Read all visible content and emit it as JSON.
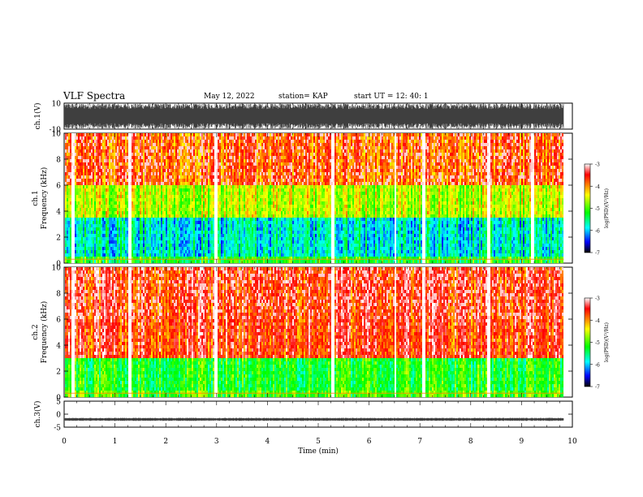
{
  "header": {
    "title": "VLF Spectra",
    "date": "May 12, 2022",
    "station": "station= KAP",
    "start": "start  UT =   12: 40: 1"
  },
  "chart_data": [
    {
      "type": "line",
      "panel": "ch1-waveform",
      "ylabel": "ch.1(V)",
      "ylim": [
        -10,
        10
      ],
      "yticks": [
        "10",
        "-10"
      ],
      "xlim": [
        0,
        10
      ],
      "data_end_min": 9.83,
      "description_values": {
        "typical_amplitude_V": 10,
        "dense_oscillation": true
      },
      "color": "#000000"
    },
    {
      "type": "heatmap",
      "panel": "ch1-spectrogram",
      "ylabel": "ch.1\nFrequency (kHz)",
      "ylabel_lines": [
        "ch.1",
        "Frequency (kHz)"
      ],
      "yticks": [
        "0",
        "2",
        "4",
        "6",
        "8",
        "10"
      ],
      "ylim": [
        0,
        10
      ],
      "xlim": [
        0,
        10
      ],
      "data_end_min": 9.83,
      "colorbar": {
        "label": "log(PSD)(V²/Hz)",
        "ticks": [
          "-3",
          "-4",
          "-5",
          "-6",
          "-7"
        ],
        "range": [
          -7,
          -3
        ],
        "colors": [
          "#ffffff",
          "#ff0000",
          "#ffff00",
          "#00ff00",
          "#00ffff",
          "#0000ff",
          "#000000"
        ]
      },
      "band_levels_logPSD": {
        "0-0.5": -5.2,
        "0.5-3.5": -5.8,
        "3.5-6": -4.6,
        "6-10": -3.8
      },
      "gap_times_min": [
        0.15,
        1.28,
        2.98,
        5.27,
        6.5,
        7.05,
        8.35,
        9.2
      ]
    },
    {
      "type": "heatmap",
      "panel": "ch2-spectrogram",
      "ylabel": "ch.2\nFrequency (kHz)",
      "ylabel_lines": [
        "ch.2",
        "Frequency (kHz)"
      ],
      "yticks": [
        "0",
        "2",
        "4",
        "6",
        "8",
        "10"
      ],
      "ylim": [
        0,
        10
      ],
      "xlim": [
        0,
        10
      ],
      "data_end_min": 9.83,
      "colorbar": {
        "label": "log(PSD)(V²/Hz)",
        "ticks": [
          "-3",
          "-4",
          "-5",
          "-6",
          "-7"
        ],
        "range": [
          -7,
          -3
        ],
        "colors": [
          "#ffffff",
          "#ff0000",
          "#ffff00",
          "#00ff00",
          "#00ffff",
          "#0000ff",
          "#000000"
        ]
      },
      "band_levels_logPSD": {
        "0-0.5": -5.0,
        "0.5-3": -5.2,
        "3-10": -3.6
      },
      "gap_times_min": [
        0.15,
        1.28,
        2.98,
        5.27,
        6.5,
        7.05,
        8.35
      ]
    },
    {
      "type": "line",
      "panel": "ch3-waveform",
      "ylabel": "ch.3(V)",
      "ylim": [
        -5,
        5
      ],
      "yticks": [
        "5",
        "0",
        "-5"
      ],
      "xlim": [
        0,
        10
      ],
      "xlabel": "Time (min)",
      "xticks": [
        "0",
        "1",
        "2",
        "3",
        "4",
        "5",
        "6",
        "7",
        "8",
        "9",
        "10"
      ],
      "data_end_min": 9.83,
      "description_values": {
        "center_V": -2,
        "amplitude_V": 0.6
      },
      "color": "#000000"
    }
  ]
}
